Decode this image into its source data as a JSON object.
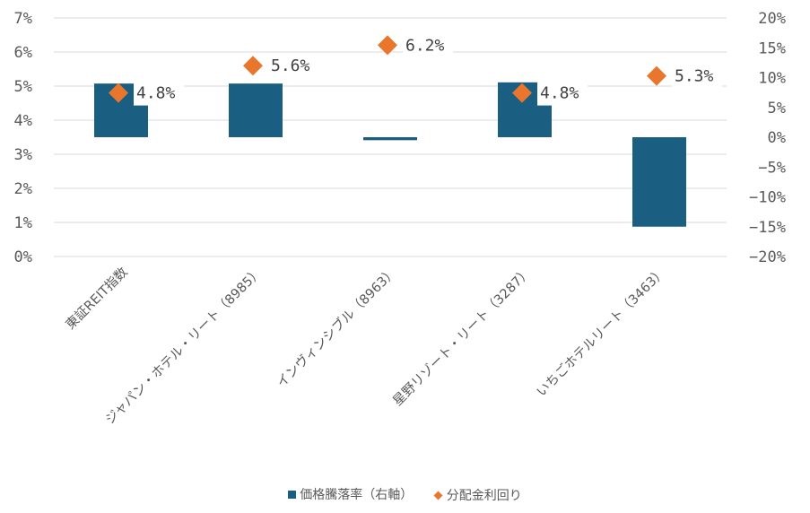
{
  "chart_data": {
    "type": "bar",
    "categories": [
      "東証REIT指数",
      "ジャパン・ホテル・リート（8985）",
      "インヴィンシブル（8963）",
      "星野リゾート・リート（3287）",
      "いちごホテルリート（3463）"
    ],
    "series": [
      {
        "name": "価格騰落率（右軸）",
        "type": "bar",
        "axis": "right",
        "color": "#1a5f82",
        "values": [
          9.0,
          9.0,
          -0.5,
          9.2,
          -15.0
        ]
      },
      {
        "name": "分配金利回り",
        "type": "scatter",
        "axis": "left",
        "color": "#e8762c",
        "values": [
          4.8,
          5.6,
          6.2,
          4.8,
          5.3
        ],
        "labels": [
          "4.8%",
          "5.6%",
          "6.2%",
          "4.8%",
          "5.3%"
        ]
      }
    ],
    "y_left": {
      "min": 0,
      "max": 7,
      "ticks": [
        "0%",
        "1%",
        "2%",
        "3%",
        "4%",
        "5%",
        "6%",
        "7%"
      ]
    },
    "y_right": {
      "min": -20,
      "max": 20,
      "ticks": [
        "−20%",
        "−15%",
        "−10%",
        "−5%",
        "0%",
        "5%",
        "10%",
        "15%",
        "20%"
      ]
    },
    "grid": true,
    "legend": "bottom"
  }
}
